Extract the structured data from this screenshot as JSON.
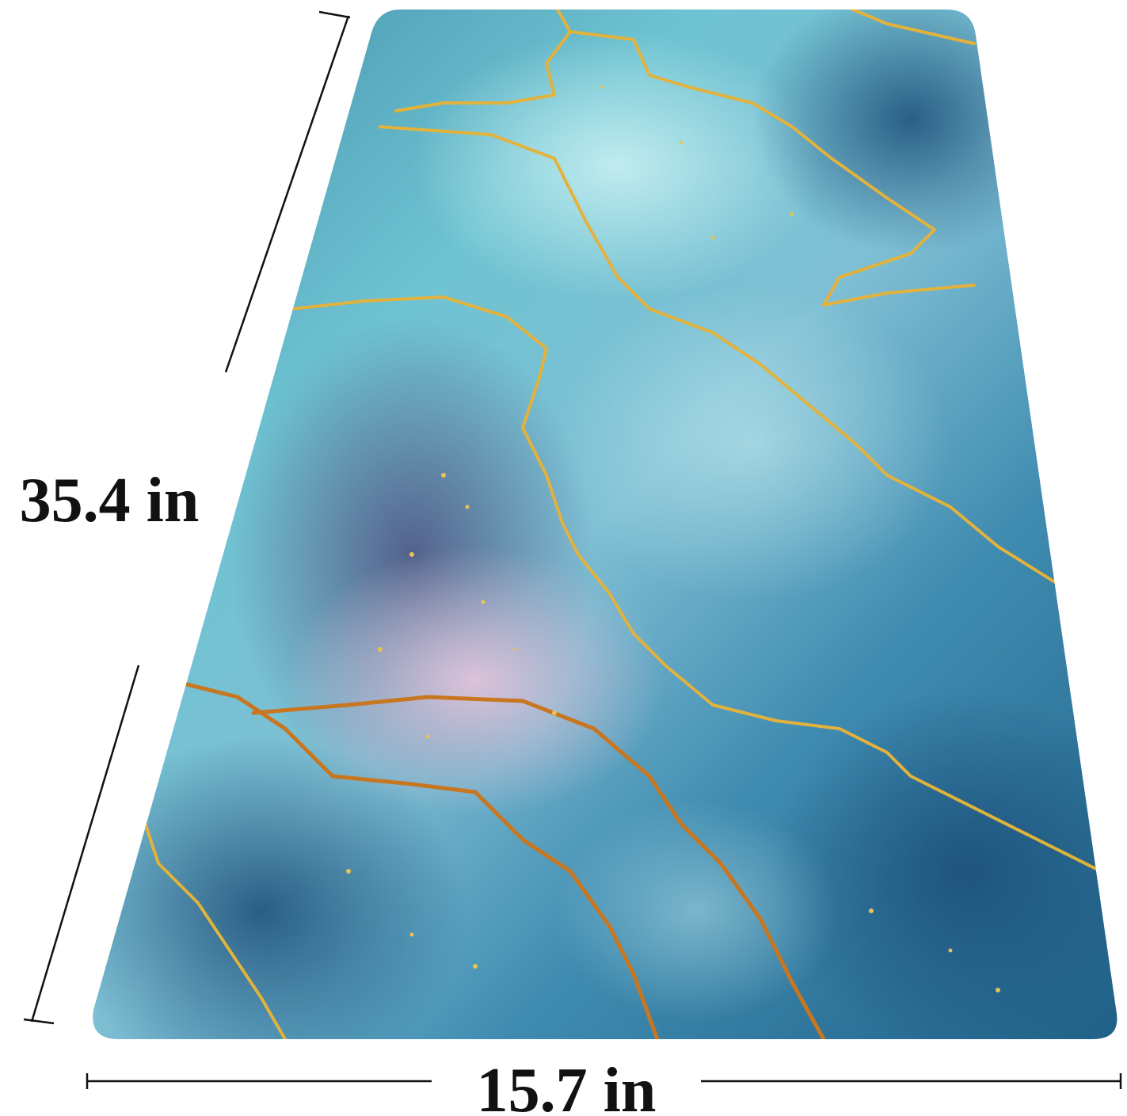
{
  "dimensions": {
    "height": "35.4 in",
    "width": "15.7 in"
  }
}
